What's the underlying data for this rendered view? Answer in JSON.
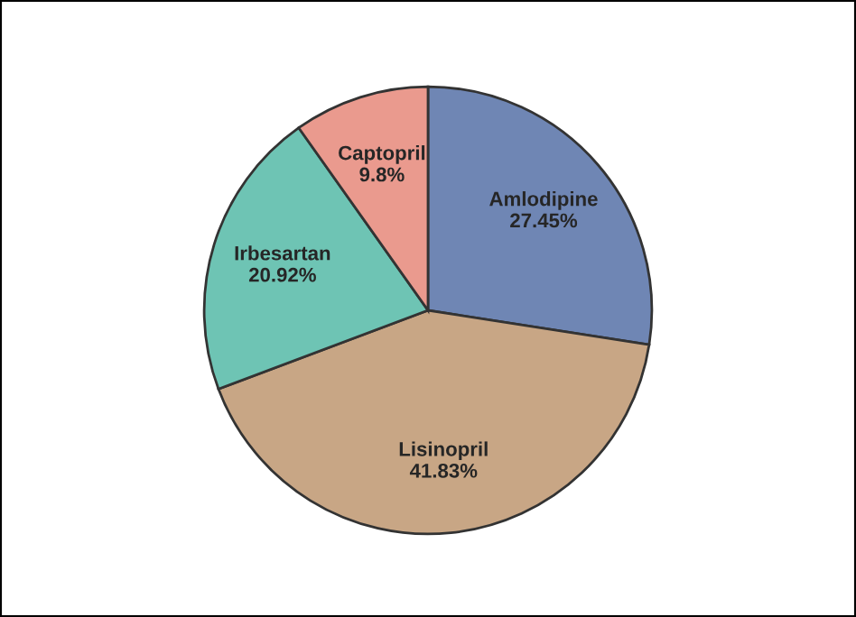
{
  "chart_data": {
    "type": "pie",
    "categories": [
      "Amlodipine",
      "Lisinopril",
      "Irbesartan",
      "Captopril"
    ],
    "values": [
      27.45,
      41.83,
      20.92,
      9.8
    ],
    "value_labels": [
      "27.45%",
      "41.83%",
      "20.92%",
      "9.8%"
    ],
    "colors": [
      "#6f86b4",
      "#c8a685",
      "#6ec4b4",
      "#ea9a8e"
    ]
  }
}
